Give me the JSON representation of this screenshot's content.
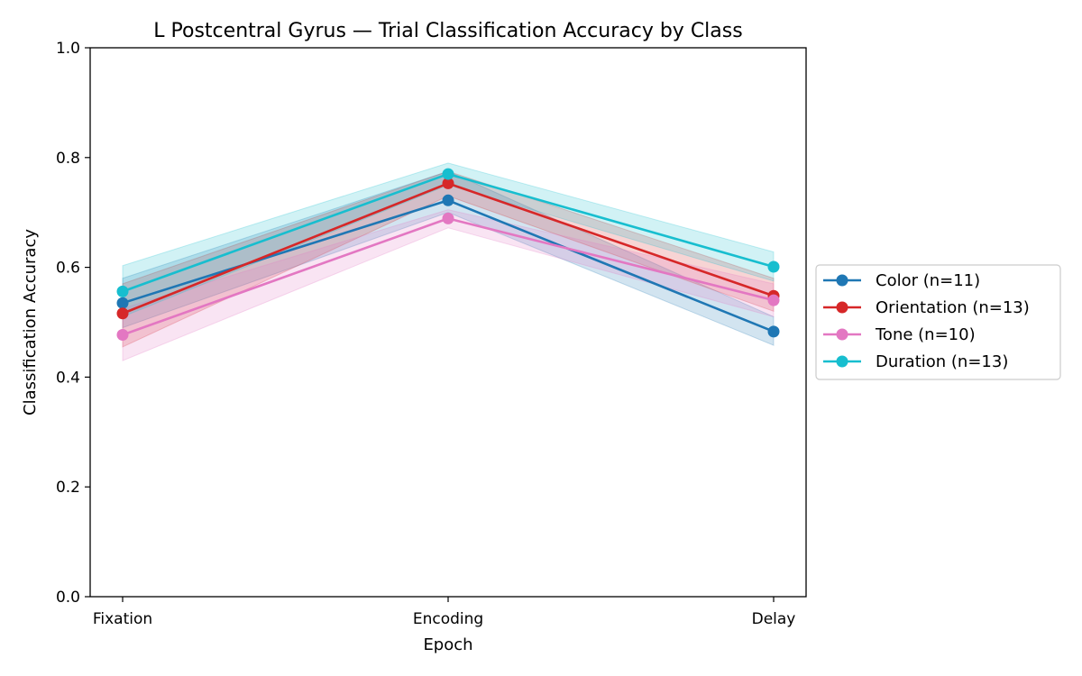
{
  "chart_data": {
    "type": "line",
    "title": "L Postcentral Gyrus — Trial Classification Accuracy by Class",
    "xlabel": "Epoch",
    "ylabel": "Classification Accuracy",
    "categories": [
      "Fixation",
      "Encoding",
      "Delay"
    ],
    "ylim": [
      0,
      1.0
    ],
    "yticks": [
      0.0,
      0.2,
      0.4,
      0.6,
      0.8,
      1.0
    ],
    "ytick_labels": [
      "0.0",
      "0.2",
      "0.4",
      "0.6",
      "0.8",
      "1.0"
    ],
    "grid": false,
    "legend_position": "right, outside plot",
    "series": [
      {
        "name": "Color (n=11)",
        "color": "#1f77b4",
        "values": [
          0.535,
          0.722,
          0.483
        ],
        "lower": [
          0.49,
          0.7,
          0.458
        ],
        "upper": [
          0.58,
          0.775,
          0.51
        ]
      },
      {
        "name": "Orientation (n=13)",
        "color": "#d62728",
        "values": [
          0.516,
          0.753,
          0.548
        ],
        "lower": [
          0.455,
          0.73,
          0.52
        ],
        "upper": [
          0.57,
          0.775,
          0.58
        ]
      },
      {
        "name": "Tone (n=10)",
        "color": "#e377c2",
        "values": [
          0.477,
          0.689,
          0.54
        ],
        "lower": [
          0.43,
          0.672,
          0.51
        ],
        "upper": [
          0.525,
          0.705,
          0.57
        ]
      },
      {
        "name": "Duration (n=13)",
        "color": "#17becf",
        "values": [
          0.556,
          0.77,
          0.601
        ],
        "lower": [
          0.51,
          0.75,
          0.575
        ],
        "upper": [
          0.603,
          0.79,
          0.628
        ]
      }
    ]
  }
}
